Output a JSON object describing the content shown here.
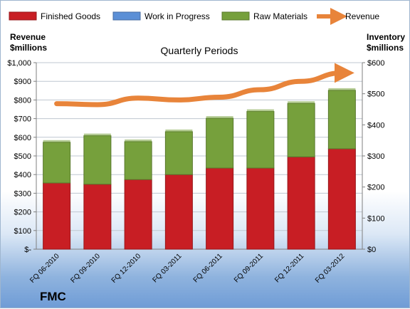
{
  "chart_data": {
    "type": "bar",
    "title": "Quarterly Periods",
    "categories": [
      "FQ 06-2010",
      "FQ 09-2010",
      "FQ 12-2010",
      "FQ 03-2011",
      "FQ 06-2011",
      "FQ 09-2011",
      "FQ 12-2011",
      "FQ 03-2012"
    ],
    "stacked": true,
    "series": [
      {
        "name": "Finished Goods",
        "axis": "right",
        "color": "#c81e24",
        "values": [
          213,
          209,
          224,
          240,
          261,
          261,
          297,
          323
        ]
      },
      {
        "name": "Work in Progress",
        "axis": "right",
        "color": "#5b8fd6",
        "values": [
          0,
          0,
          0,
          0,
          0,
          0,
          0,
          0
        ]
      },
      {
        "name": "Raw Materials",
        "axis": "right",
        "color": "#76a03c",
        "values": [
          131,
          156,
          122,
          138,
          160,
          182,
          172,
          188
        ]
      },
      {
        "name": "Revenue",
        "axis": "left",
        "type": "line",
        "color": "#e8843a",
        "values": [
          780,
          775,
          810,
          800,
          815,
          855,
          900,
          945
        ]
      }
    ],
    "y_left": {
      "label_lines": [
        "Revenue",
        "$millions"
      ],
      "ticks": [
        "$-",
        "$100",
        "$200",
        "$300",
        "$400",
        "$500",
        "$600",
        "$700",
        "$800",
        "$900",
        "$1,000"
      ],
      "ylim": [
        0,
        1000
      ]
    },
    "y_right": {
      "label_lines": [
        "Inventory",
        "$millions"
      ],
      "ticks": [
        "$0",
        "$100",
        "$200",
        "$300",
        "$400",
        "$500",
        "$600"
      ],
      "ylim": [
        0,
        600
      ]
    },
    "legend": {
      "position": "top"
    },
    "grid": true
  },
  "brand": "FMC"
}
